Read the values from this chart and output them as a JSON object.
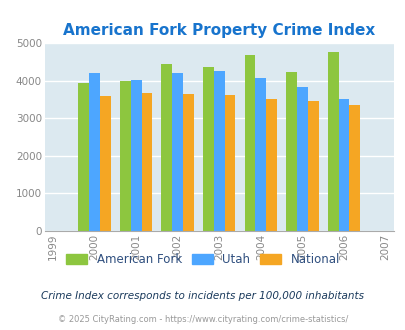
{
  "title": "American Fork Property Crime Index",
  "title_color": "#1874cd",
  "years": [
    1999,
    2000,
    2001,
    2002,
    2003,
    2004,
    2005,
    2006,
    2007
  ],
  "data_years": [
    2000,
    2001,
    2002,
    2003,
    2004,
    2005,
    2006
  ],
  "american_fork": [
    3930,
    3980,
    4430,
    4360,
    4680,
    4220,
    4770
  ],
  "utah": [
    4200,
    4020,
    4200,
    4260,
    4060,
    3840,
    3510
  ],
  "national": [
    3600,
    3670,
    3640,
    3610,
    3510,
    3450,
    3340
  ],
  "bar_colors": {
    "american_fork": "#8dc63f",
    "utah": "#4da6ff",
    "national": "#f5a623"
  },
  "plot_bg": "#dce9f0",
  "ylim": [
    0,
    5000
  ],
  "yticks": [
    0,
    1000,
    2000,
    3000,
    4000,
    5000
  ],
  "legend_labels": [
    "American Fork",
    "Utah",
    "National"
  ],
  "legend_text_color": "#2f4f7f",
  "footnote1": "Crime Index corresponds to incidents per 100,000 inhabitants",
  "footnote1_color": "#1a3a5c",
  "footnote2": "© 2025 CityRating.com - https://www.cityrating.com/crime-statistics/",
  "footnote2_color": "#999999",
  "grid_color": "#ffffff"
}
